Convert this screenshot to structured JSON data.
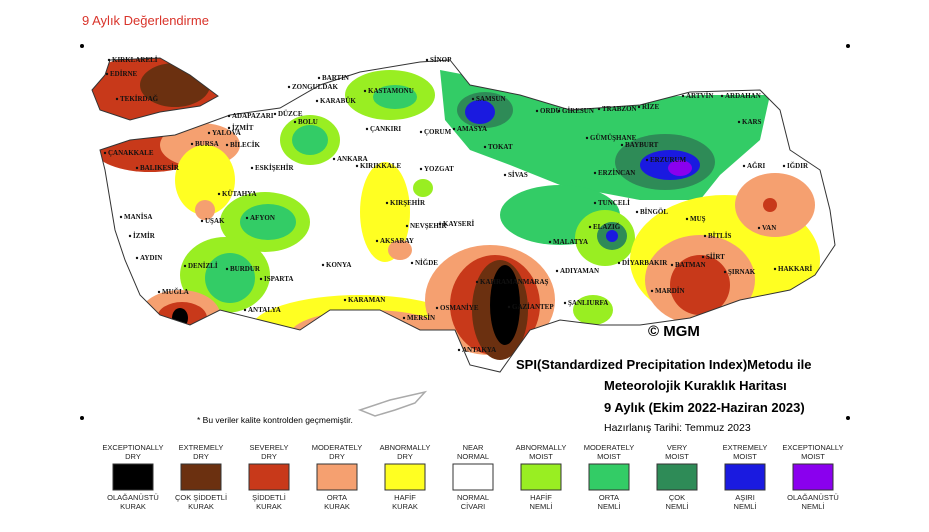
{
  "header": {
    "title": "9 Aylık Değerlendirme"
  },
  "map": {
    "cities": [
      "KIRKLARELİ",
      "EDİRNE",
      "TEKİRDAĞ",
      "ADAPAZARI",
      "DÜZCE",
      "BOLU",
      "İZMİT",
      "BİLECİK",
      "BURSA",
      "YALOVA",
      "ÇANAKKALE",
      "BALIKESİR",
      "ESKİŞEHİR",
      "KÜTAHYA",
      "UŞAK",
      "AFYON",
      "MANİSA",
      "İZMİR",
      "AYDIN",
      "DENİZLİ",
      "BURDUR",
      "ISPARTA",
      "MUĞLA",
      "ANTALYA",
      "ZONGULDAK",
      "BARTIN",
      "KARABÜK",
      "KASTAMONU",
      "SİNOP",
      "SAMSUN",
      "AMASYA",
      "ÇORUM",
      "ÇANKIRI",
      "ANKARA",
      "KIRIKKALE",
      "YOZGAT",
      "TOKAT",
      "ORDU",
      "GİRESUN",
      "TRABZON",
      "RİZE",
      "ARTVİN",
      "ARDAHAN",
      "KARS",
      "GÜMÜŞHANE",
      "BAYBURT",
      "ERZURUM",
      "SİVAS",
      "ERZİNCAN",
      "AĞRI",
      "IĞDIR",
      "KIRŞEHİR",
      "NEVŞEHİR",
      "KAYSERİ",
      "AKSARAY",
      "KONYA",
      "NİĞDE",
      "TUNCELİ",
      "BİNGÖL",
      "MUŞ",
      "ELAZIĞ",
      "MALATYA",
      "BİTLİS",
      "VAN",
      "SİİRT",
      "BATMAN",
      "DİYARBAKIR",
      "ADIYAMAN",
      "KARAMAN",
      "MERSİN",
      "KAHRAMANMARAŞ",
      "GAZİANTEP",
      "ŞANLIURFA",
      "MARDİN",
      "ŞIRNAK",
      "HAKKARİ",
      "OSMANİYE",
      "ANTAKYA"
    ],
    "copyright": "© MGM",
    "title_lines": [
      "SPI(Standardized Precipitation Index)Metodu ile",
      "Meteorolojik Kuraklık Haritası",
      "9 Aylık (Ekim 2022-Haziran 2023)"
    ],
    "date": "Hazırlanış Tarihi: Temmuz 2023",
    "note": "* Bu veriler kalite kontrolden geçmemiştir."
  },
  "legend": {
    "items": [
      {
        "en": [
          "EXCEPTIONALLY",
          "DRY"
        ],
        "tr": [
          "OLAĞANÜSTÜ",
          "KURAK"
        ],
        "color": "#000000"
      },
      {
        "en": [
          "EXTREMELY",
          "DRY"
        ],
        "tr": [
          "ÇOK ŞİDDETLİ",
          "KURAK"
        ],
        "color": "#6b3010"
      },
      {
        "en": [
          "SEVERELY",
          "DRY"
        ],
        "tr": [
          "ŞİDDETLİ",
          "KURAK"
        ],
        "color": "#c8391a"
      },
      {
        "en": [
          "MODERATELY",
          "DRY"
        ],
        "tr": [
          "ORTA",
          "KURAK"
        ],
        "color": "#f5a070"
      },
      {
        "en": [
          "ABNORMALLY",
          "DRY"
        ],
        "tr": [
          "HAFİF",
          "KURAK"
        ],
        "color": "#ffff22"
      },
      {
        "en": [
          "NEAR",
          "NORMAL"
        ],
        "tr": [
          "NORMAL",
          "CİVARI"
        ],
        "color": "#ffffff"
      },
      {
        "en": [
          "ABNORMALLY",
          "MOIST"
        ],
        "tr": [
          "HAFİF",
          "NEMLİ"
        ],
        "color": "#99ee22"
      },
      {
        "en": [
          "MODERATELY",
          "MOIST"
        ],
        "tr": [
          "ORTA",
          "NEMLİ"
        ],
        "color": "#33cc66"
      },
      {
        "en": [
          "VERY",
          "MOIST"
        ],
        "tr": [
          "ÇOK",
          "NEMLİ"
        ],
        "color": "#2e8b57"
      },
      {
        "en": [
          "EXTREMELY",
          "MOIST"
        ],
        "tr": [
          "AŞIRI",
          "NEMLİ"
        ],
        "color": "#1a1ae0"
      },
      {
        "en": [
          "EXCEPTIONALLY",
          "MOIST"
        ],
        "tr": [
          "OLAĞANÜSTÜ",
          "NEMLİ"
        ],
        "color": "#8a00ee"
      }
    ]
  }
}
